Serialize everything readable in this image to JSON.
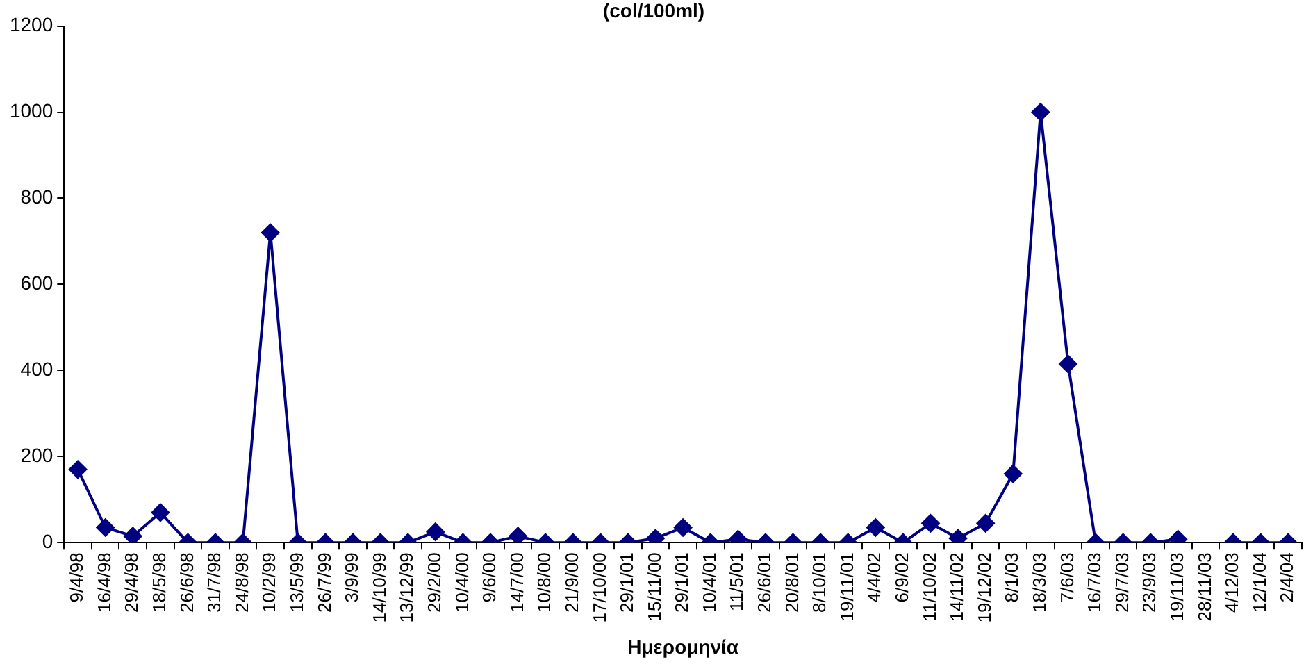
{
  "chart_data": {
    "type": "line",
    "title": "(col/100ml)",
    "xlabel": "Ημερομηνία",
    "categories": [
      "9/4/98",
      "16/4/98",
      "29/4/98",
      "18/5/98",
      "26/6/98",
      "31/7/98",
      "24/8/98",
      "10/2/99",
      "13/5/99",
      "26/7/99",
      "3/9/99",
      "14/10/99",
      "13/12/99",
      "29/2/00",
      "10/4/00",
      "9/6/00",
      "14/7/00",
      "10/8/00",
      "21/9/00",
      "17/10/00",
      "29/1/01",
      "15/11/00",
      "29/1/01",
      "10/4/01",
      "11/5/01",
      "26/6/01",
      "20/8/01",
      "8/10/01",
      "19/11/01",
      "4/4/02",
      "6/9/02",
      "11/10/02",
      "14/11/02",
      "19/12/02",
      "8/1/03",
      "18/3/03",
      "7/6/03",
      "16/7/03",
      "29/7/03",
      "23/9/03",
      "19/11/03",
      "28/11/03",
      "4/12/03",
      "12/1/04",
      "2/4/04"
    ],
    "series": [
      {
        "color": "#000080",
        "values": [
          170,
          35,
          15,
          70,
          0,
          0,
          0,
          720,
          0,
          0,
          0,
          0,
          0,
          25,
          0,
          0,
          15,
          0,
          0,
          0,
          0,
          10,
          35,
          0,
          8,
          0,
          0,
          0,
          0,
          35,
          0,
          45,
          10,
          45,
          160,
          1000,
          415,
          0,
          0,
          0,
          8,
          null,
          0,
          0,
          0
        ]
      }
    ],
    "ylim": [
      0,
      1200
    ],
    "yticks": [
      0,
      200,
      400,
      600,
      800,
      1000,
      1200
    ],
    "marker": "diamond",
    "line_style": "solid"
  }
}
